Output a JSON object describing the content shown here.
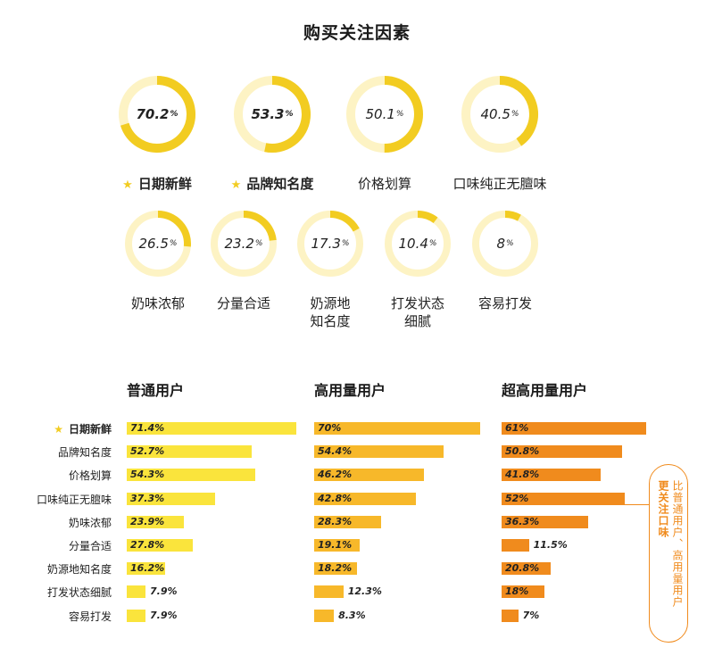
{
  "chart_data": [
    {
      "type": "pie",
      "title": "购买关注因素",
      "unit": "%",
      "slices": [
        {
          "label": "日期新鲜",
          "value": 70.2,
          "highlight": true
        },
        {
          "label": "品牌知名度",
          "value": 53.3,
          "highlight": true
        },
        {
          "label": "价格划算",
          "value": 50.1,
          "highlight": false
        },
        {
          "label": "口味纯正无膻味",
          "value": 40.5,
          "highlight": false
        },
        {
          "label": "奶味浓郁",
          "value": 26.5,
          "highlight": false
        },
        {
          "label": "分量合适",
          "value": 23.2,
          "highlight": false
        },
        {
          "label": "奶源地知名度",
          "value": 17.3,
          "highlight": false,
          "lines": [
            "奶源地",
            "知名度"
          ]
        },
        {
          "label": "打发状态细腻",
          "value": 10.4,
          "highlight": false,
          "lines": [
            "打发状态",
            "细腻"
          ]
        },
        {
          "label": "容易打发",
          "value": 8,
          "highlight": false
        }
      ],
      "ring_color": "#f2cc21",
      "track_color": "#fdf3c4"
    },
    {
      "type": "bar",
      "orientation": "horizontal",
      "unit": "%",
      "categories": [
        "日期新鲜",
        "品牌知名度",
        "价格划算",
        "口味纯正无膻味",
        "奶味浓郁",
        "分量合适",
        "奶源地知名度",
        "打发状态细腻",
        "容易打发"
      ],
      "highlight_category": "日期新鲜",
      "series": [
        {
          "name": "普通用户",
          "color": "#fae43c",
          "values": [
            71.4,
            52.7,
            54.3,
            37.3,
            23.9,
            27.8,
            16.2,
            7.9,
            7.9
          ]
        },
        {
          "name": "高用量用户",
          "color": "#f7b82a",
          "values": [
            70,
            54.4,
            46.2,
            42.8,
            28.3,
            19.1,
            18.2,
            12.3,
            8.3
          ]
        },
        {
          "name": "超高用量用户",
          "color": "#f08b1d",
          "values": [
            61,
            50.8,
            41.8,
            52,
            36.3,
            11.5,
            20.8,
            18,
            7
          ]
        }
      ],
      "xlim": [
        0,
        71.4
      ],
      "annotation": {
        "main": "更关注口味",
        "sub": "比普通用户、高用量用户",
        "color": "#f08b1d",
        "category": "口味纯正无膻味"
      }
    }
  ]
}
